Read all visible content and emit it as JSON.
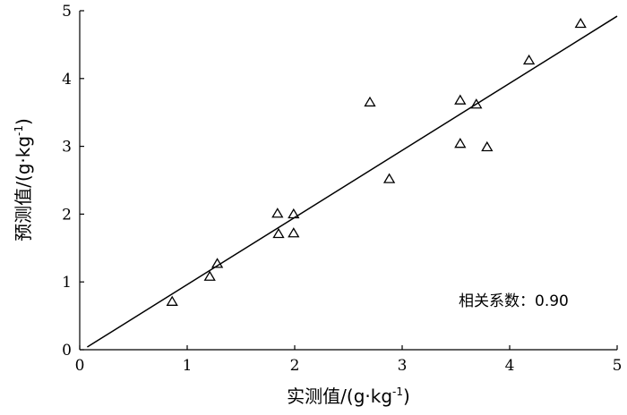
{
  "chart_data": {
    "type": "scatter",
    "xlabel_main": "实测值/(g·kg",
    "xlabel_sup": "-1",
    "xlabel_tail": ")",
    "ylabel_main": "预测值/(g·kg",
    "ylabel_sup": "-1",
    "ylabel_tail": ")",
    "xlim": [
      0,
      5
    ],
    "ylim": [
      0,
      5
    ],
    "xticks": [
      "0",
      "1",
      "2",
      "3",
      "4",
      "5"
    ],
    "yticks": [
      "0",
      "1",
      "2",
      "3",
      "4",
      "5"
    ],
    "annotation": "相关系数：0.90",
    "marker": "triangle-open",
    "points": [
      {
        "x": 0.86,
        "y": 0.71
      },
      {
        "x": 1.21,
        "y": 1.08
      },
      {
        "x": 1.28,
        "y": 1.27
      },
      {
        "x": 1.84,
        "y": 2.01
      },
      {
        "x": 1.85,
        "y": 1.71
      },
      {
        "x": 1.99,
        "y": 2.0
      },
      {
        "x": 1.99,
        "y": 1.72
      },
      {
        "x": 2.7,
        "y": 3.65
      },
      {
        "x": 2.88,
        "y": 2.52
      },
      {
        "x": 3.54,
        "y": 3.68
      },
      {
        "x": 3.54,
        "y": 3.04
      },
      {
        "x": 3.69,
        "y": 3.62
      },
      {
        "x": 3.79,
        "y": 2.99
      },
      {
        "x": 4.18,
        "y": 4.27
      },
      {
        "x": 4.66,
        "y": 4.81
      }
    ],
    "fit_line": {
      "x": [
        0.07,
        5.0
      ],
      "y": [
        0.04,
        4.92
      ]
    }
  }
}
